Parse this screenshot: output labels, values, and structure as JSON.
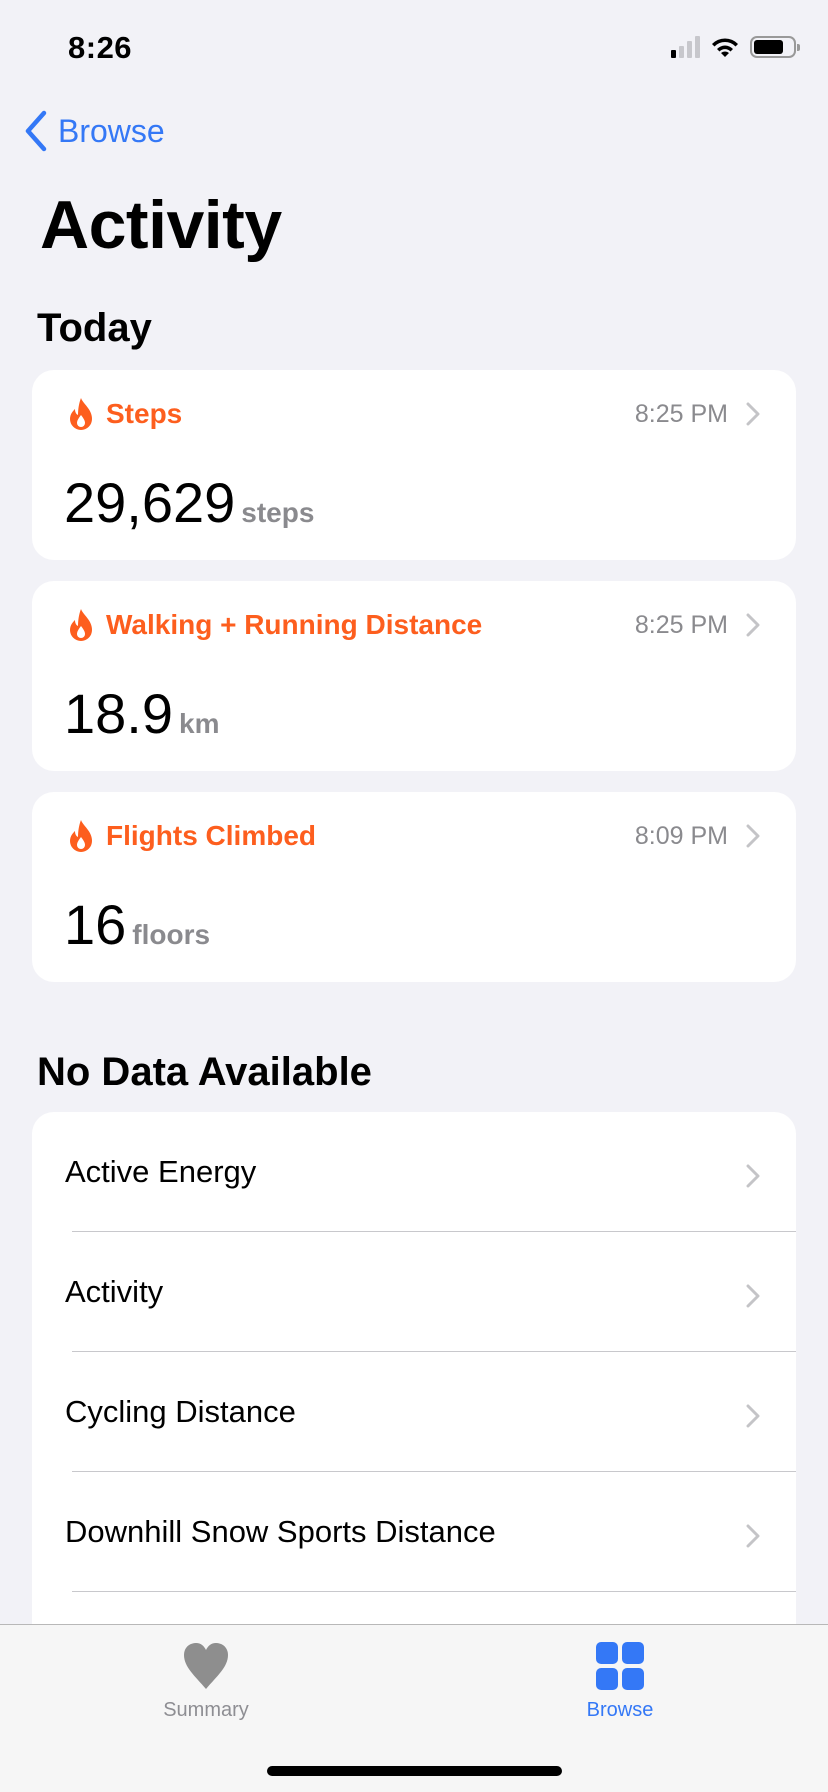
{
  "status_bar": {
    "time": "8:26"
  },
  "nav": {
    "back_label": "Browse",
    "title": "Activity"
  },
  "colors": {
    "accent": "#3478f6",
    "activity": "#fd5e1e",
    "secondary": "#8a8a8e"
  },
  "today": {
    "header": "Today",
    "metrics": [
      {
        "label": "Steps",
        "time": "8:25 PM",
        "value": "29,629",
        "unit": "steps",
        "icon": "flame-icon"
      },
      {
        "label": "Walking + Running Distance",
        "time": "8:25 PM",
        "value": "18.9",
        "unit": "km",
        "icon": "flame-icon"
      },
      {
        "label": "Flights Climbed",
        "time": "8:09 PM",
        "value": "16",
        "unit": "floors",
        "icon": "flame-icon"
      }
    ]
  },
  "no_data": {
    "header": "No Data Available",
    "items": [
      "Active Energy",
      "Activity",
      "Cycling Distance",
      "Downhill Snow Sports Distance"
    ]
  },
  "tabbar": {
    "items": [
      {
        "label": "Summary",
        "icon": "heart-icon",
        "active": false
      },
      {
        "label": "Browse",
        "icon": "grid-icon",
        "active": true
      }
    ]
  }
}
